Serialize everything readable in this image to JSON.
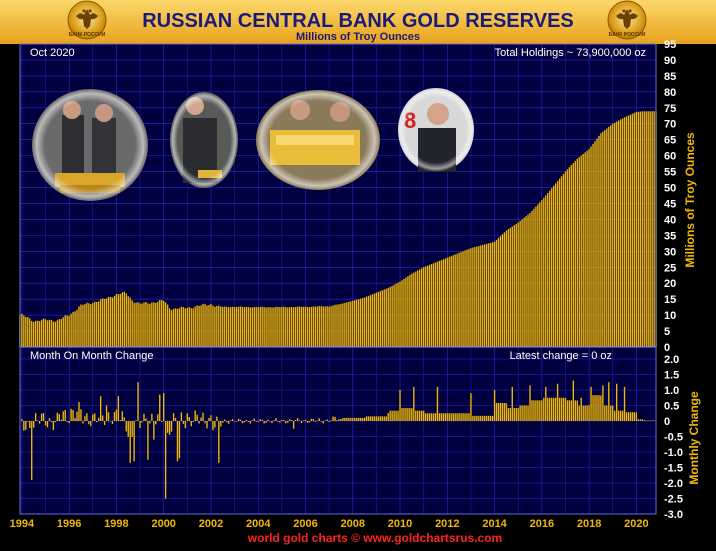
{
  "header": {
    "title": "RUSSIAN CENTRAL BANK GOLD RESERVES",
    "subtitle": "Millions of Troy Ounces",
    "emblem_left_text": "БАНК РОССИИ",
    "emblem_right_text": "БАНК РОССИИ"
  },
  "footer": {
    "credit": "world gold charts © www.goldchartsrus.com"
  },
  "colors": {
    "background": "#000040",
    "bar": "#f0b800",
    "grid": "#2a2ad0",
    "text": "#ffffff",
    "frame_top": "#f5c030",
    "footer_text": "#ff2020"
  },
  "icons": [
    "eagle-emblem-icon",
    "eagle-emblem-icon"
  ],
  "photos": [
    "officials-with-gold-bars-photo",
    "official-with-gold-bar-photo",
    "officials-viewing-gold-photo",
    "official-pointing-photo"
  ],
  "chart_data": [
    {
      "type": "bar",
      "title": "RUSSIAN CENTRAL BANK GOLD RESERVES",
      "subtitle": "Millions of Troy Ounces",
      "date_label": "Oct 2020",
      "annotation": "Total Holdings ~ 73,900,000 oz",
      "ylabel": "Millions of Troy Ounces",
      "ylim": [
        0,
        95
      ],
      "y_ticks": [
        "95",
        "90",
        "85",
        "80",
        "75",
        "70",
        "65",
        "60",
        "55",
        "50",
        "45",
        "40",
        "35",
        "30",
        "25",
        "20",
        "15",
        "10",
        "5",
        "0"
      ],
      "grid": true,
      "x_ticks": [
        "1994",
        "1996",
        "1998",
        "2000",
        "2002",
        "2004",
        "2006",
        "2008",
        "2010",
        "2012",
        "2014",
        "2016",
        "2018",
        "2020"
      ],
      "x_range": [
        1993.92,
        2020.83
      ],
      "anchors": [
        [
          1993.92,
          10.3
        ],
        [
          1994.5,
          8.2
        ],
        [
          1995.0,
          8.5
        ],
        [
          1995.5,
          8.3
        ],
        [
          1996.0,
          10.0
        ],
        [
          1996.5,
          13.0
        ],
        [
          1997.0,
          14.0
        ],
        [
          1997.5,
          15.0
        ],
        [
          1998.0,
          16.5
        ],
        [
          1998.4,
          17.0
        ],
        [
          1998.7,
          14.5
        ],
        [
          1999.0,
          13.5
        ],
        [
          1999.5,
          14.0
        ],
        [
          2000.0,
          14.5
        ],
        [
          2000.3,
          12.0
        ],
        [
          2001.0,
          12.3
        ],
        [
          2002.0,
          13.5
        ],
        [
          2002.3,
          12.6
        ],
        [
          2003.0,
          12.6
        ],
        [
          2004.0,
          12.5
        ],
        [
          2005.0,
          12.5
        ],
        [
          2006.0,
          12.6
        ],
        [
          2007.0,
          12.8
        ],
        [
          2007.5,
          13.5
        ],
        [
          2008.0,
          14.5
        ],
        [
          2008.5,
          15.5
        ],
        [
          2009.0,
          17.0
        ],
        [
          2009.5,
          18.5
        ],
        [
          2010.0,
          20.5
        ],
        [
          2010.5,
          23.0
        ],
        [
          2011.0,
          25.0
        ],
        [
          2011.5,
          26.5
        ],
        [
          2012.0,
          28.0
        ],
        [
          2012.5,
          29.5
        ],
        [
          2013.0,
          31.0
        ],
        [
          2014.0,
          33.0
        ],
        [
          2014.5,
          36.5
        ],
        [
          2015.0,
          39.0
        ],
        [
          2015.5,
          42.0
        ],
        [
          2016.0,
          46.0
        ],
        [
          2016.5,
          50.5
        ],
        [
          2017.0,
          55.0
        ],
        [
          2017.5,
          59.0
        ],
        [
          2018.0,
          62.0
        ],
        [
          2018.5,
          67.0
        ],
        [
          2019.0,
          70.0
        ],
        [
          2019.5,
          72.0
        ],
        [
          2020.0,
          73.7
        ],
        [
          2020.3,
          73.9
        ],
        [
          2020.83,
          73.9
        ]
      ]
    },
    {
      "type": "bar",
      "title": "Month On Month Change",
      "annotation": "Latest change = 0 oz",
      "ylabel": "Monthly Change",
      "ylim": [
        -3.0,
        2.0
      ],
      "y_ticks": [
        "2.0",
        "1.5",
        "1.0",
        "0.5",
        "0",
        "-0.5",
        "-1.0",
        "-1.5",
        "-2.0",
        "-2.5",
        "-3.0"
      ],
      "grid": true,
      "spikes": [
        [
          1994.45,
          -1.9
        ],
        [
          1997.3,
          0.8
        ],
        [
          1997.6,
          0.5
        ],
        [
          1998.1,
          0.8
        ],
        [
          1998.6,
          -1.35
        ],
        [
          1998.75,
          -1.3
        ],
        [
          1998.9,
          1.25
        ],
        [
          1999.3,
          -1.25
        ],
        [
          1999.6,
          -0.6
        ],
        [
          1999.85,
          0.85
        ],
        [
          2000.0,
          0.9
        ],
        [
          2000.1,
          -2.5
        ],
        [
          2000.25,
          -0.45
        ],
        [
          2000.55,
          -1.3
        ],
        [
          2000.7,
          -1.2
        ],
        [
          2001.0,
          0.25
        ],
        [
          2002.3,
          -1.35
        ],
        [
          2005.5,
          -0.25
        ],
        [
          2010.0,
          1.0
        ],
        [
          2010.6,
          1.1
        ],
        [
          2011.6,
          1.1
        ],
        [
          2013.0,
          0.9
        ],
        [
          2014.0,
          1.0
        ],
        [
          2014.75,
          1.1
        ],
        [
          2015.5,
          1.15
        ],
        [
          2016.2,
          1.1
        ],
        [
          2016.7,
          1.2
        ],
        [
          2017.3,
          1.3
        ],
        [
          2017.7,
          0.75
        ],
        [
          2018.1,
          1.1
        ],
        [
          2018.6,
          1.15
        ],
        [
          2018.85,
          1.25
        ],
        [
          2019.15,
          1.2
        ],
        [
          2019.5,
          1.1
        ]
      ]
    }
  ]
}
